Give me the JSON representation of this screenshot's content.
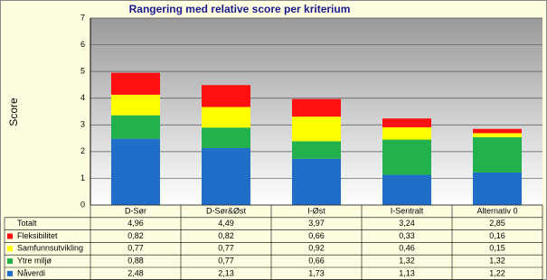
{
  "chart_data": {
    "type": "bar",
    "stacked": true,
    "title": "Rangering med relative score per kriterium",
    "y_label": "Score",
    "categories": [
      "D-Sør",
      "D-Sør&Øst",
      "I-Øst",
      "I-Sentralt",
      "Alternativ 0"
    ],
    "series": [
      {
        "name": "Nåverdi",
        "color": "#1f6fc8",
        "values": [
          2.48,
          2.13,
          1.73,
          1.13,
          1.22
        ],
        "value_labels": [
          "2,48",
          "2,13",
          "1,73",
          "1,13",
          "1,22"
        ]
      },
      {
        "name": "Ytre miljø",
        "color": "#22b14c",
        "values": [
          0.88,
          0.77,
          0.66,
          1.32,
          1.32
        ],
        "value_labels": [
          "0,88",
          "0,77",
          "0,66",
          "1,32",
          "1,32"
        ]
      },
      {
        "name": "Samfunnsutvikling",
        "color": "#ffff00",
        "values": [
          0.77,
          0.77,
          0.92,
          0.46,
          0.15
        ],
        "value_labels": [
          "0,77",
          "0,77",
          "0,92",
          "0,46",
          "0,15"
        ]
      },
      {
        "name": "Fleksibilitet",
        "color": "#ff1010",
        "values": [
          0.82,
          0.82,
          0.66,
          0.33,
          0.16
        ],
        "value_labels": [
          "0,82",
          "0,82",
          "0,66",
          "0,33",
          "0,16"
        ]
      }
    ],
    "totals": {
      "name": "Totalt",
      "labels": [
        "4,96",
        "4,49",
        "3,97",
        "3,24",
        "2,85"
      ]
    },
    "ylim": [
      0,
      7
    ],
    "yticks": [
      0,
      1,
      2,
      3,
      4,
      5,
      6,
      7
    ],
    "grid": true
  }
}
